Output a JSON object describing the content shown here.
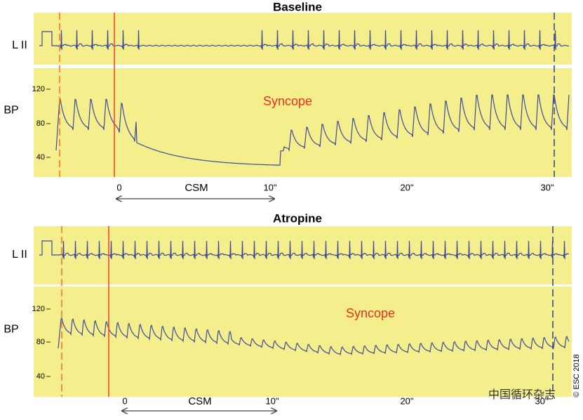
{
  "panels": [
    {
      "title": "Baseline",
      "ecg_label": "L II",
      "bp_label": "BP",
      "y_ticks": [
        120,
        80,
        40
      ],
      "annotation": "Syncope",
      "time_labels": [
        "0",
        "10\"",
        "20\"",
        "30\""
      ],
      "intervention": "CSM"
    },
    {
      "title": "Atropine",
      "ecg_label": "L II",
      "bp_label": "BP",
      "y_ticks": [
        120,
        80,
        40
      ],
      "annotation": "Syncope",
      "time_labels": [
        "0",
        "10\"",
        "20\"",
        "30\""
      ],
      "intervention": "CSM"
    }
  ],
  "copyright": "© ESC 2018",
  "watermark": "中国循环杂志"
}
